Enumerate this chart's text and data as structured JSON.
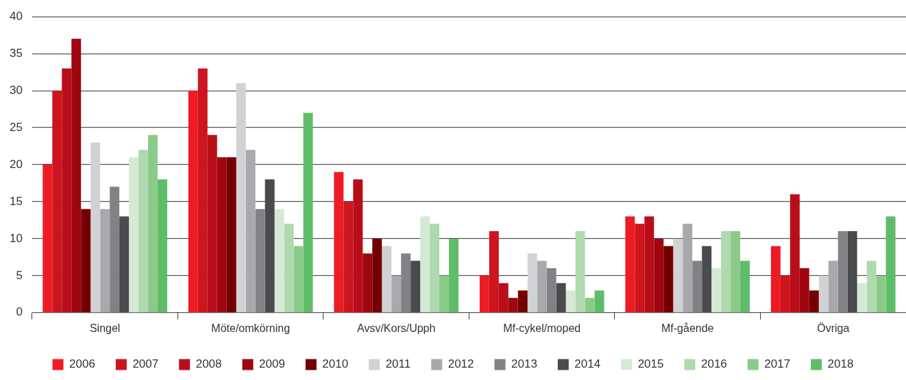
{
  "chart_data": {
    "type": "bar",
    "categories": [
      "Singel",
      "Möte/omkörning",
      "Avsv/Kors/Upph",
      "Mf-cykel/moped",
      "Mf-gående",
      "Övriga"
    ],
    "series": [
      {
        "name": "2006",
        "color": "#ed1c24",
        "values": [
          20,
          30,
          19,
          5,
          13,
          9
        ]
      },
      {
        "name": "2007",
        "color": "#cc151f",
        "values": [
          30,
          33,
          15,
          11,
          12,
          5
        ]
      },
      {
        "name": "2008",
        "color": "#b90e19",
        "values": [
          33,
          24,
          18,
          4,
          13,
          16
        ]
      },
      {
        "name": "2009",
        "color": "#9f0610",
        "values": [
          37,
          21,
          8,
          2,
          10,
          6
        ]
      },
      {
        "name": "2010",
        "color": "#730000",
        "values": [
          14,
          21,
          10,
          3,
          9,
          3
        ]
      },
      {
        "name": "2011",
        "color": "#d1d2d4",
        "values": [
          23,
          31,
          9,
          8,
          10,
          5
        ]
      },
      {
        "name": "2012",
        "color": "#a8a9ad",
        "values": [
          14,
          22,
          5,
          7,
          12,
          7
        ]
      },
      {
        "name": "2013",
        "color": "#808285",
        "values": [
          17,
          14,
          8,
          6,
          7,
          11
        ]
      },
      {
        "name": "2014",
        "color": "#4a4b4d",
        "values": [
          13,
          18,
          7,
          4,
          9,
          11
        ]
      },
      {
        "name": "2015",
        "color": "#d5ead5",
        "values": [
          21,
          14,
          13,
          3,
          6,
          4
        ]
      },
      {
        "name": "2016",
        "color": "#afd9ae",
        "values": [
          22,
          12,
          12,
          11,
          11,
          7
        ]
      },
      {
        "name": "2017",
        "color": "#8bcb89",
        "values": [
          24,
          9,
          5,
          2,
          11,
          5
        ]
      },
      {
        "name": "2018",
        "color": "#5fbd6a",
        "values": [
          18,
          27,
          10,
          3,
          7,
          13
        ]
      }
    ],
    "ylim": [
      0,
      40
    ],
    "yticks": [
      0,
      5,
      10,
      15,
      20,
      25,
      30,
      35,
      40
    ],
    "grid": "y",
    "legend": "bottom"
  }
}
